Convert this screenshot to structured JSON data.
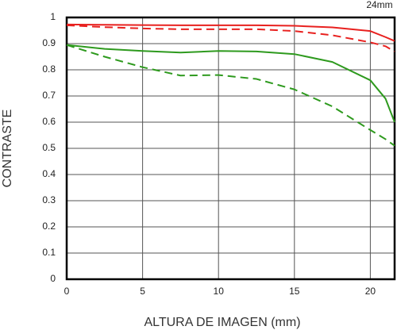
{
  "chart_data": {
    "type": "line",
    "title": "24mm",
    "x_label": "ALTURA DE IMAGEN (mm)",
    "y_label": "CONTRASTE",
    "x": [
      0,
      2.5,
      5,
      7.5,
      10,
      12.5,
      15,
      17.5,
      20,
      21,
      21.6
    ],
    "series": [
      {
        "color": "#e8211f",
        "dash": false,
        "values": [
          0.973,
          0.972,
          0.971,
          0.97,
          0.97,
          0.97,
          0.968,
          0.962,
          0.948,
          0.925,
          0.91
        ]
      },
      {
        "color": "#e8211f",
        "dash": true,
        "values": [
          0.97,
          0.963,
          0.958,
          0.955,
          0.955,
          0.955,
          0.948,
          0.932,
          0.905,
          0.89,
          0.87
        ]
      },
      {
        "color": "#2e9a1e",
        "dash": false,
        "values": [
          0.895,
          0.88,
          0.872,
          0.866,
          0.872,
          0.87,
          0.86,
          0.83,
          0.76,
          0.69,
          0.6
        ]
      },
      {
        "color": "#2e9a1e",
        "dash": true,
        "values": [
          0.895,
          0.85,
          0.81,
          0.778,
          0.78,
          0.765,
          0.725,
          0.66,
          0.57,
          0.535,
          0.51
        ]
      }
    ],
    "xlim": [
      0,
      21.6
    ],
    "ylim": [
      0,
      1
    ],
    "xticks": [
      0,
      5,
      10,
      15,
      20
    ],
    "yticks": [
      0,
      0.1,
      0.2,
      0.3,
      0.4,
      0.5,
      0.6,
      0.7,
      0.8,
      0.9,
      1
    ],
    "grid": true
  }
}
